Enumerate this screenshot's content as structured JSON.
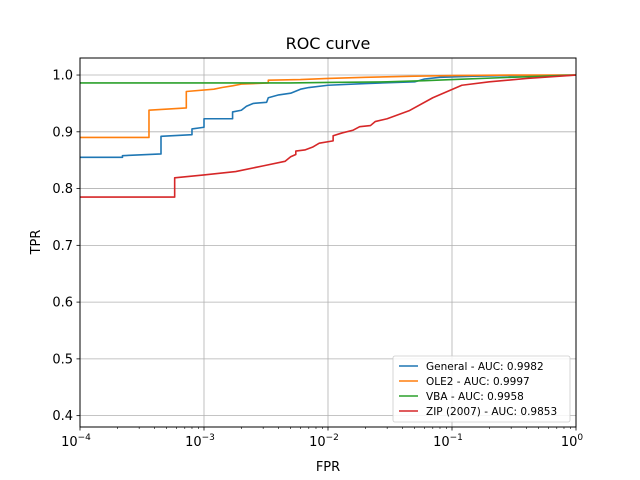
{
  "chart_data": {
    "type": "line",
    "title": "ROC curve",
    "xlabel": "FPR",
    "ylabel": "TPR",
    "xscale": "log",
    "xlim": [
      0.0001,
      1
    ],
    "ylim": [
      0.38,
      1.03
    ],
    "grid": true,
    "legend_position": "lower-right",
    "x_ticks": [
      {
        "value": 0.0001,
        "base": "10",
        "exp": "−4"
      },
      {
        "value": 0.001,
        "base": "10",
        "exp": "−3"
      },
      {
        "value": 0.01,
        "base": "10",
        "exp": "−2"
      },
      {
        "value": 0.1,
        "base": "10",
        "exp": "−1"
      },
      {
        "value": 1,
        "base": "10",
        "exp": "0"
      }
    ],
    "y_ticks": [
      {
        "value": 0.4,
        "label": "0.4"
      },
      {
        "value": 0.5,
        "label": "0.5"
      },
      {
        "value": 0.6,
        "label": "0.6"
      },
      {
        "value": 0.7,
        "label": "0.7"
      },
      {
        "value": 0.8,
        "label": "0.8"
      },
      {
        "value": 0.9,
        "label": "0.9"
      },
      {
        "value": 1.0,
        "label": "1.0"
      }
    ],
    "series": [
      {
        "name": "General - AUC: 0.9982",
        "color": "#1f77b4",
        "points": [
          [
            0.0001,
            0.855
          ],
          [
            0.00022,
            0.855
          ],
          [
            0.00022,
            0.858
          ],
          [
            0.00045,
            0.861
          ],
          [
            0.00045,
            0.892
          ],
          [
            0.0008,
            0.895
          ],
          [
            0.0008,
            0.905
          ],
          [
            0.001,
            0.908
          ],
          [
            0.001,
            0.923
          ],
          [
            0.0017,
            0.923
          ],
          [
            0.0017,
            0.935
          ],
          [
            0.002,
            0.938
          ],
          [
            0.0022,
            0.945
          ],
          [
            0.0025,
            0.95
          ],
          [
            0.0032,
            0.952
          ],
          [
            0.0033,
            0.96
          ],
          [
            0.004,
            0.965
          ],
          [
            0.005,
            0.968
          ],
          [
            0.006,
            0.975
          ],
          [
            0.007,
            0.978
          ],
          [
            0.01,
            0.982
          ],
          [
            0.02,
            0.985
          ],
          [
            0.05,
            0.988
          ],
          [
            0.06,
            0.993
          ],
          [
            0.08,
            0.996
          ],
          [
            0.15,
            0.998
          ],
          [
            0.3,
            0.999
          ],
          [
            1,
            1.0
          ]
        ]
      },
      {
        "name": "OLE2 - AUC: 0.9997",
        "color": "#ff7f0e",
        "points": [
          [
            0.0001,
            0.89
          ],
          [
            0.00036,
            0.89
          ],
          [
            0.00036,
            0.938
          ],
          [
            0.00072,
            0.942
          ],
          [
            0.00072,
            0.971
          ],
          [
            0.0012,
            0.975
          ],
          [
            0.0014,
            0.978
          ],
          [
            0.0017,
            0.981
          ],
          [
            0.002,
            0.984
          ],
          [
            0.0033,
            0.986
          ],
          [
            0.0033,
            0.991
          ],
          [
            0.006,
            0.992
          ],
          [
            0.01,
            0.994
          ],
          [
            0.02,
            0.996
          ],
          [
            0.05,
            0.998
          ],
          [
            0.1,
            0.999
          ],
          [
            0.3,
            1.0
          ],
          [
            1,
            1.0
          ]
        ]
      },
      {
        "name": "VBA - AUC: 0.9958",
        "color": "#2ca02c",
        "points": [
          [
            0.0001,
            0.986
          ],
          [
            0.005,
            0.986
          ],
          [
            0.01,
            0.987
          ],
          [
            0.03,
            0.988
          ],
          [
            0.06,
            0.99
          ],
          [
            0.1,
            0.992
          ],
          [
            0.3,
            0.996
          ],
          [
            1,
            1.0
          ]
        ]
      },
      {
        "name": "ZIP (2007) - AUC: 0.9853",
        "color": "#d62728",
        "points": [
          [
            0.0001,
            0.785
          ],
          [
            0.00058,
            0.785
          ],
          [
            0.00058,
            0.819
          ],
          [
            0.001,
            0.824
          ],
          [
            0.0018,
            0.83
          ],
          [
            0.003,
            0.84
          ],
          [
            0.0045,
            0.848
          ],
          [
            0.005,
            0.856
          ],
          [
            0.0055,
            0.86
          ],
          [
            0.0055,
            0.866
          ],
          [
            0.0065,
            0.868
          ],
          [
            0.0075,
            0.873
          ],
          [
            0.0085,
            0.88
          ],
          [
            0.011,
            0.884
          ],
          [
            0.011,
            0.893
          ],
          [
            0.013,
            0.898
          ],
          [
            0.016,
            0.903
          ],
          [
            0.018,
            0.909
          ],
          [
            0.022,
            0.911
          ],
          [
            0.024,
            0.918
          ],
          [
            0.03,
            0.923
          ],
          [
            0.045,
            0.937
          ],
          [
            0.07,
            0.96
          ],
          [
            0.12,
            0.982
          ],
          [
            0.2,
            0.988
          ],
          [
            0.4,
            0.994
          ],
          [
            1,
            1.0
          ]
        ]
      }
    ]
  }
}
